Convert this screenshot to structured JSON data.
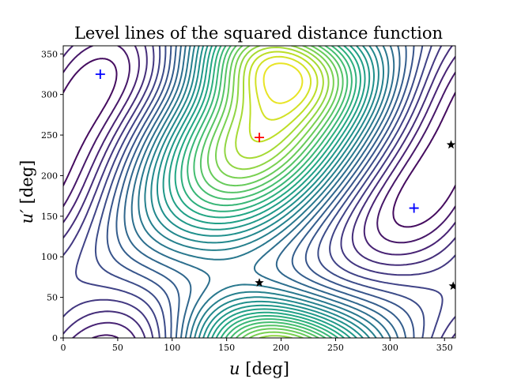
{
  "chart_data": {
    "type": "contour",
    "title": "Level lines of the squared distance function",
    "xlabel": "u [deg]",
    "ylabel": "u′ [deg]",
    "xlim": [
      0,
      360
    ],
    "ylim": [
      0,
      360
    ],
    "xticks": [
      0,
      50,
      100,
      150,
      200,
      250,
      300,
      350
    ],
    "yticks": [
      0,
      50,
      100,
      150,
      200,
      250,
      300,
      350
    ],
    "colormap": "viridis",
    "grid": false,
    "markers": {
      "maximum": {
        "symbol": "+",
        "color": "#ff0000",
        "points": [
          [
            180,
            247
          ]
        ]
      },
      "minima": {
        "symbol": "+",
        "color": "#0000ff",
        "points": [
          [
            34,
            325
          ],
          [
            322,
            160
          ]
        ]
      },
      "saddles": {
        "symbol": "star",
        "color": "#000000",
        "points": [
          [
            180,
            68
          ],
          [
            356,
            238
          ],
          [
            358,
            64
          ]
        ]
      }
    }
  }
}
